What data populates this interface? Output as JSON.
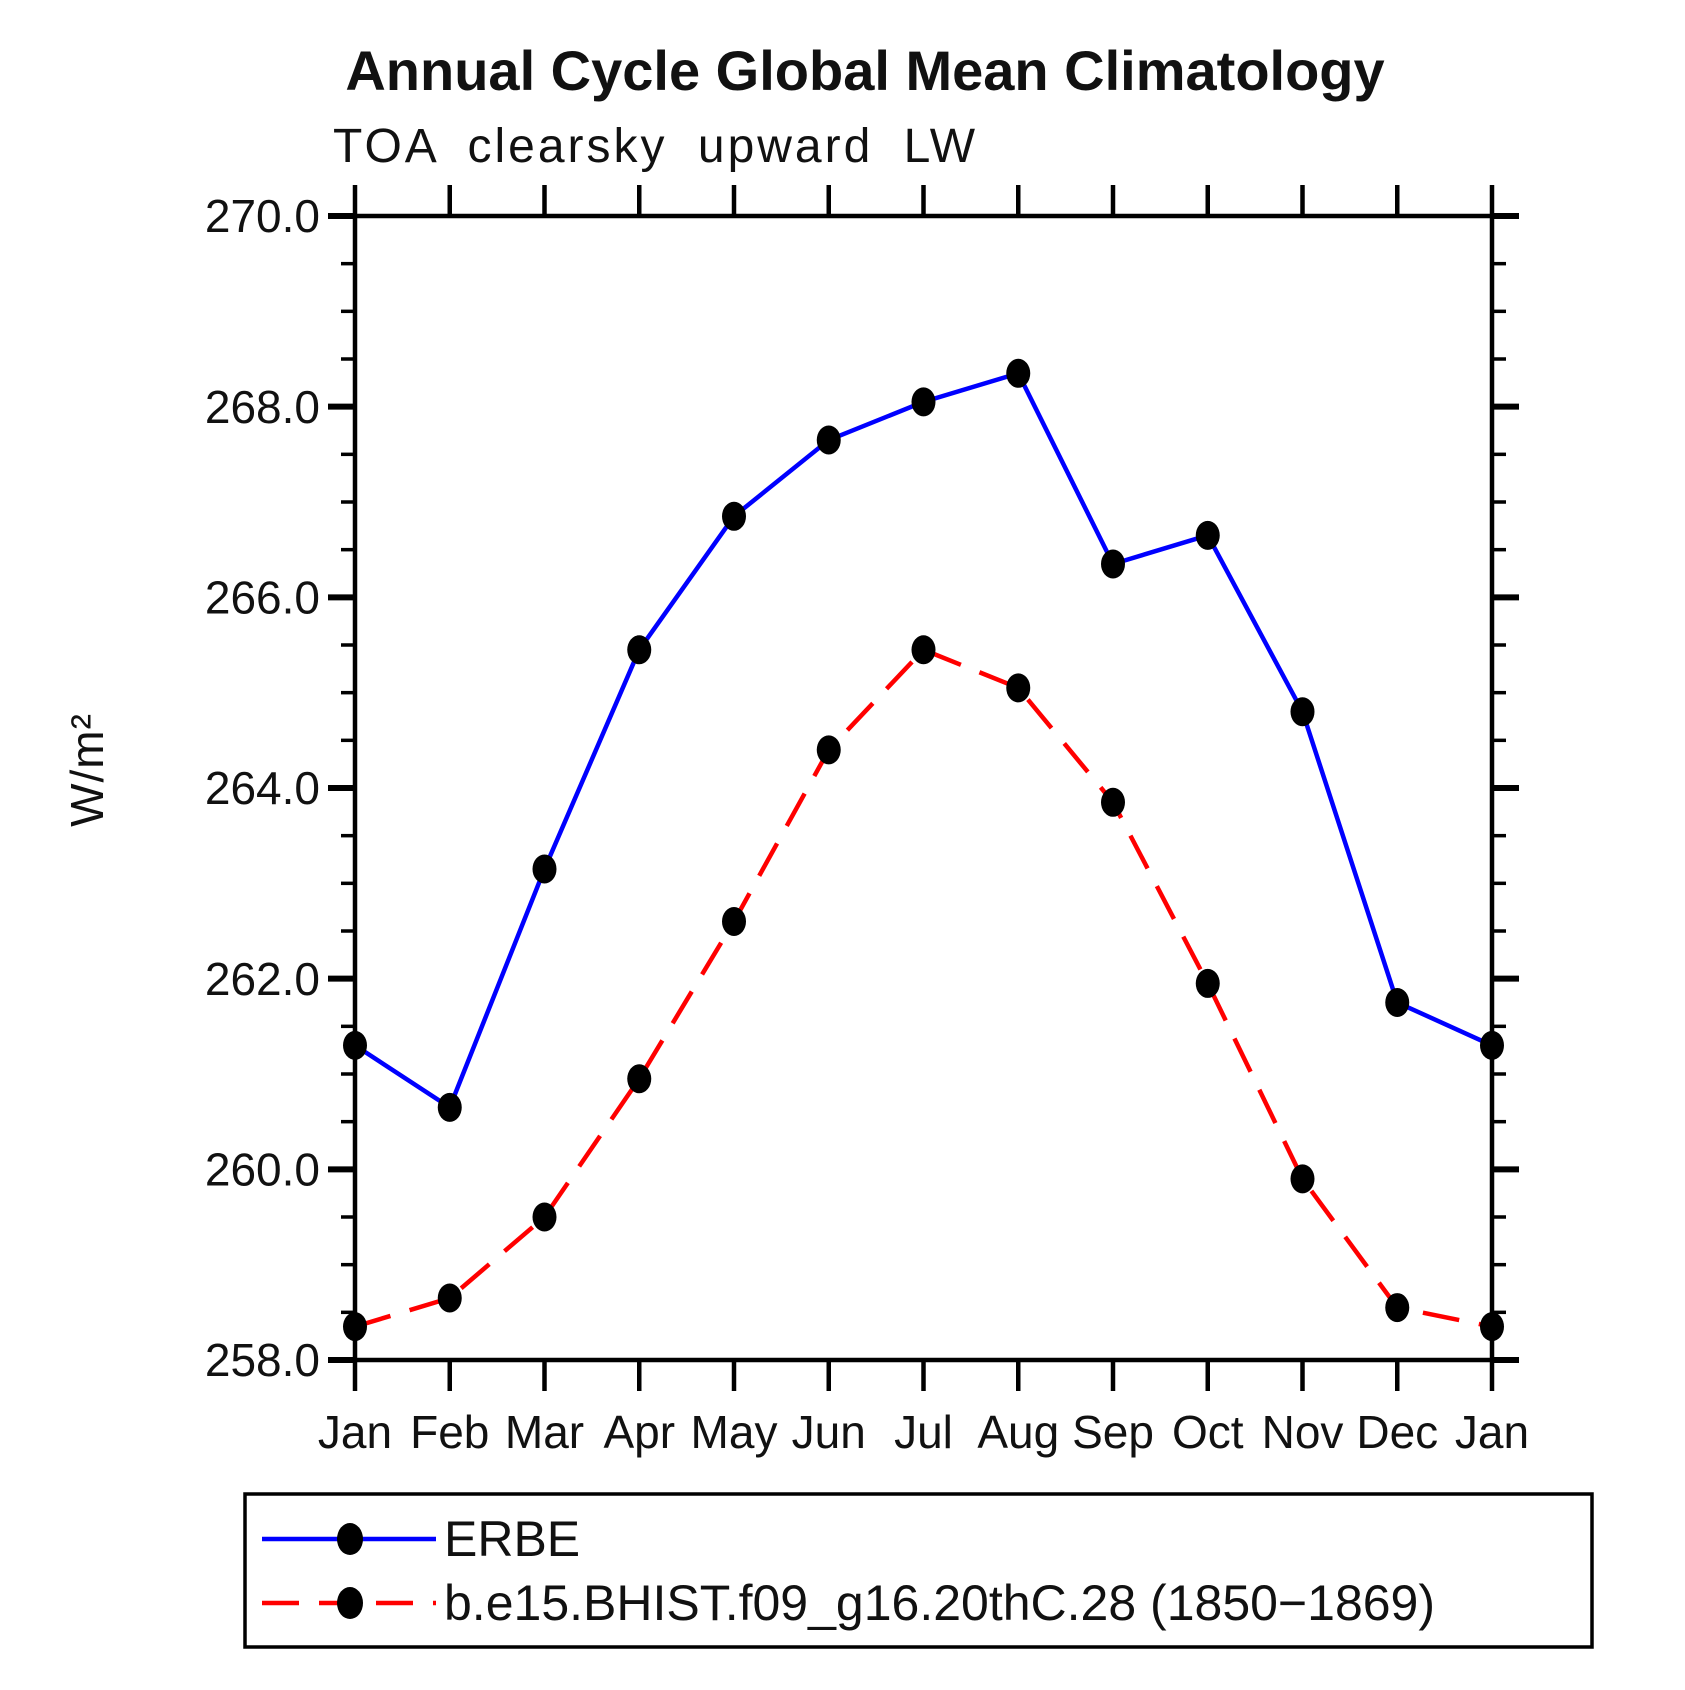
{
  "page": {
    "title": "Annual Cycle Global Mean Climatology",
    "subtitle": "TOA clearsky upward LW"
  },
  "chart_data": {
    "type": "line",
    "title": "Annual Cycle Global Mean Climatology",
    "subtitle": "TOA clearsky upward LW",
    "ylabel": "W/m²",
    "xlabel": "",
    "categories": [
      "Jan",
      "Feb",
      "Mar",
      "Apr",
      "May",
      "Jun",
      "Jul",
      "Aug",
      "Sep",
      "Oct",
      "Nov",
      "Dec",
      "Jan"
    ],
    "series": [
      {
        "name": "ERBE",
        "line_color": "#0000ff",
        "line_style": "solid",
        "marker_color": "#000000",
        "values": [
          261.3,
          260.65,
          263.15,
          265.45,
          266.85,
          267.65,
          268.05,
          268.35,
          266.35,
          266.65,
          264.8,
          261.75,
          261.3
        ]
      },
      {
        "name": "b.e15.BHIST.f09_g16.20thC.28 (1850−1869)",
        "line_color": "#ff0000",
        "line_style": "dashed",
        "marker_color": "#000000",
        "values": [
          258.35,
          258.65,
          259.5,
          260.95,
          262.6,
          264.4,
          265.45,
          265.05,
          263.85,
          261.95,
          259.9,
          258.55,
          258.35
        ]
      }
    ],
    "ylim": [
      258.0,
      270.0
    ],
    "ytick_major_values": [
      258,
      260,
      262,
      264,
      266,
      268,
      270
    ],
    "ytick_major_labels": [
      "258.0",
      "260.0",
      "262.0",
      "264.0",
      "266.0",
      "268.0",
      "270.0"
    ],
    "ytick_minor_step": 0.5,
    "grid": false,
    "legend_position": "bottom",
    "frame_color": "#000000",
    "text_color": "#111111"
  }
}
